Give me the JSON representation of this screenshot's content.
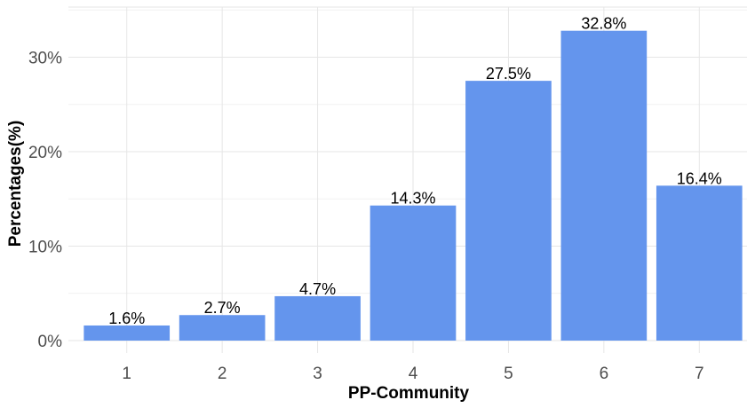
{
  "chart_data": {
    "type": "bar",
    "categories": [
      "1",
      "2",
      "3",
      "4",
      "5",
      "6",
      "7"
    ],
    "values": [
      1.6,
      2.7,
      4.7,
      14.3,
      27.5,
      32.8,
      16.4
    ],
    "data_labels": [
      "1.6%",
      "2.7%",
      "4.7%",
      "14.3%",
      "27.5%",
      "32.8%",
      "16.4%"
    ],
    "title": "",
    "xlabel": "PP-Community",
    "ylabel": "Percentages(%)",
    "ylim": [
      0,
      35
    ],
    "yticks": [
      0,
      10,
      20,
      30
    ],
    "ytick_labels": [
      "0%",
      "10%",
      "20%",
      "30%"
    ],
    "grid": true,
    "bar_color": "#6495ED"
  }
}
